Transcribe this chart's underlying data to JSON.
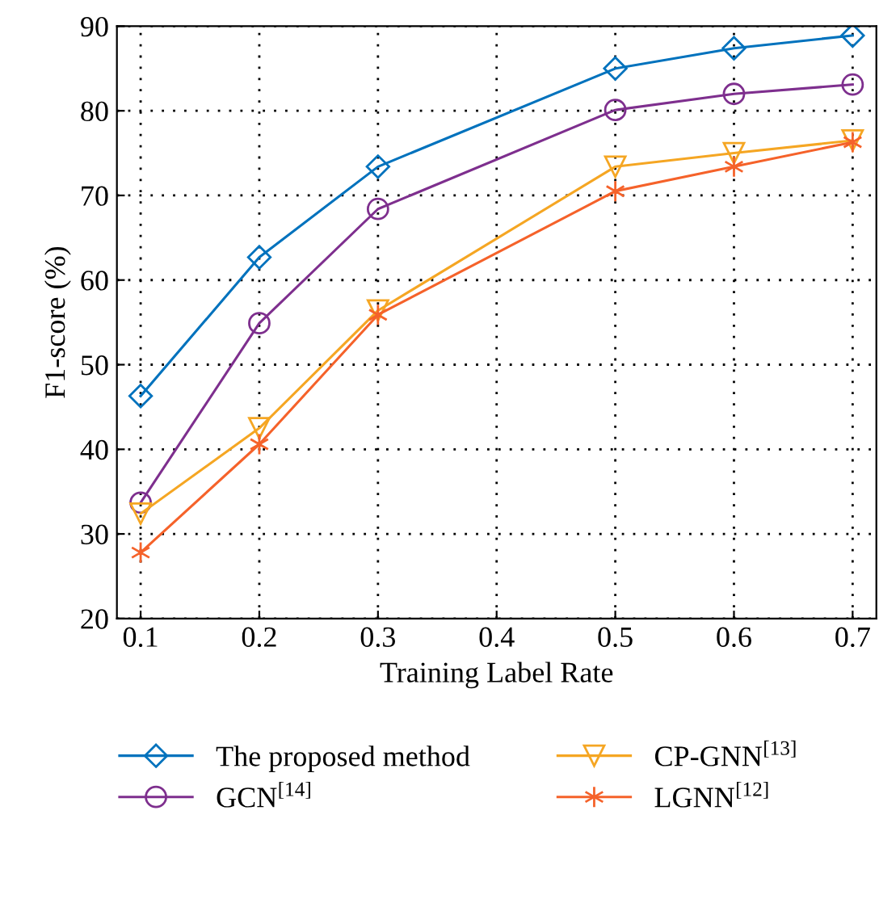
{
  "chart_data": {
    "type": "line",
    "xlabel": "Training Label Rate",
    "ylabel": "F1-score (%)",
    "x": [
      0.1,
      0.2,
      0.3,
      0.5,
      0.6,
      0.7
    ],
    "xlim": [
      0.08,
      0.72
    ],
    "xticks": [
      0.1,
      0.2,
      0.3,
      0.4,
      0.5,
      0.6,
      0.7
    ],
    "ylim": [
      20,
      90
    ],
    "yticks": [
      20,
      30,
      40,
      50,
      60,
      70,
      80,
      90
    ],
    "grid": true,
    "legend": "bottom",
    "line_style": "solid",
    "series": [
      {
        "name": "The proposed method",
        "color": "#0072bd",
        "marker": "diamond",
        "values": [
          46.3,
          62.7,
          73.4,
          85.0,
          87.4,
          88.9
        ]
      },
      {
        "name": "GCN$^{[14]}$",
        "color": "#7e2f8e",
        "marker": "circle",
        "values": [
          33.7,
          54.9,
          68.4,
          80.1,
          82.0,
          83.1
        ]
      },
      {
        "name": "CP-GNN$^{[13]}$",
        "color": "#f5a623",
        "marker": "triangle",
        "values": [
          32.4,
          42.5,
          56.4,
          73.4,
          75.0,
          76.5
        ]
      },
      {
        "name": "LGNN$^{[12]}$",
        "color": "#f5622a",
        "marker": "cross",
        "values": [
          27.8,
          40.6,
          55.9,
          70.5,
          73.4,
          76.3
        ]
      }
    ]
  }
}
